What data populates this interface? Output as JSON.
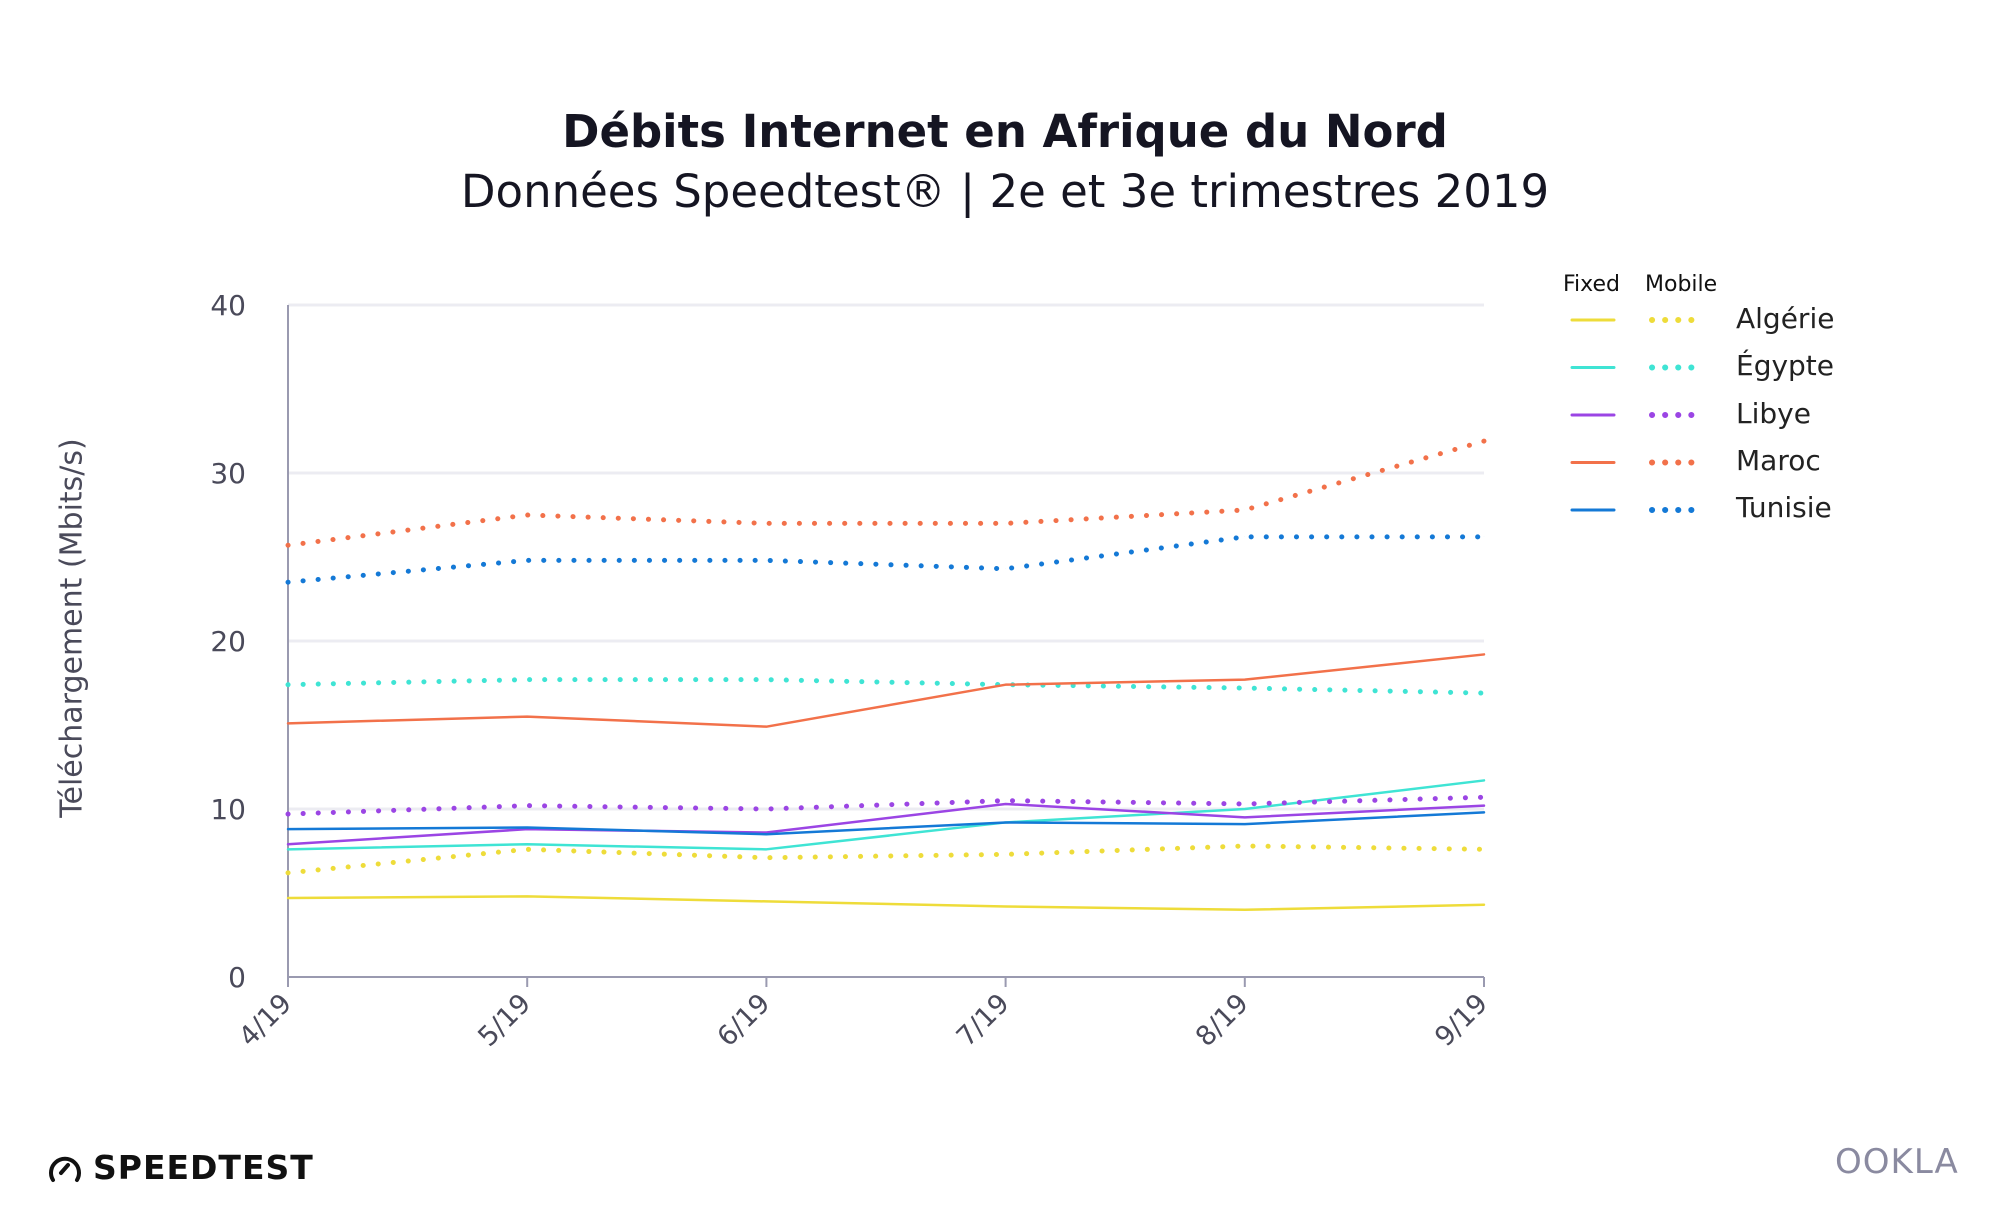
{
  "header": {
    "title": "Débits Internet en Afrique du Nord",
    "subtitle": "Données Speedtest® | 2e et 3e trimestres 2019"
  },
  "chart_data": {
    "type": "line",
    "title": "Débits Internet en Afrique du Nord",
    "subtitle": "Données Speedtest® | 2e et 3e trimestres 2019",
    "xlabel": "",
    "ylabel": "Téléchargement (Mbits/s)",
    "categories": [
      "4/19",
      "5/19",
      "6/19",
      "7/19",
      "8/19",
      "9/19"
    ],
    "ylim": [
      0,
      40
    ],
    "yticks": [
      0,
      10,
      20,
      30,
      40
    ],
    "grid": true,
    "legend": {
      "position": "right",
      "headers": [
        "Fixed",
        "Mobile"
      ]
    },
    "series": [
      {
        "name": "Algérie",
        "type": "Fixed",
        "color": "#eedc3a",
        "values": [
          4.7,
          4.8,
          4.5,
          4.2,
          4.0,
          4.3
        ]
      },
      {
        "name": "Algérie",
        "type": "Mobile",
        "color": "#eedc3a",
        "values": [
          6.2,
          7.6,
          7.1,
          7.3,
          7.8,
          7.6
        ]
      },
      {
        "name": "Égypte",
        "type": "Fixed",
        "color": "#3fe4d4",
        "values": [
          7.6,
          7.9,
          7.6,
          9.2,
          10.0,
          11.7
        ]
      },
      {
        "name": "Égypte",
        "type": "Mobile",
        "color": "#3fe4d4",
        "values": [
          17.4,
          17.7,
          17.7,
          17.4,
          17.2,
          16.9
        ]
      },
      {
        "name": "Libye",
        "type": "Fixed",
        "color": "#9b45e4",
        "values": [
          7.9,
          8.8,
          8.6,
          10.3,
          9.5,
          10.2
        ]
      },
      {
        "name": "Libye",
        "type": "Mobile",
        "color": "#9b45e4",
        "values": [
          9.7,
          10.2,
          10.0,
          10.5,
          10.3,
          10.7
        ]
      },
      {
        "name": "Maroc",
        "type": "Fixed",
        "color": "#f2714a",
        "values": [
          15.1,
          15.5,
          14.9,
          17.4,
          17.7,
          19.2
        ]
      },
      {
        "name": "Maroc",
        "type": "Mobile",
        "color": "#f2714a",
        "values": [
          25.7,
          27.5,
          27.0,
          27.0,
          27.8,
          31.9
        ]
      },
      {
        "name": "Tunisie",
        "type": "Fixed",
        "color": "#1479d6",
        "values": [
          8.8,
          8.9,
          8.5,
          9.2,
          9.1,
          9.8
        ]
      },
      {
        "name": "Tunisie",
        "type": "Mobile",
        "color": "#1479d6",
        "values": [
          23.5,
          24.8,
          24.8,
          24.3,
          26.2,
          26.2
        ]
      }
    ],
    "countries": [
      "Algérie",
      "Égypte",
      "Libye",
      "Maroc",
      "Tunisie"
    ]
  },
  "branding": {
    "speedtest": "SPEEDTEST",
    "ookla": "OOKLA"
  }
}
